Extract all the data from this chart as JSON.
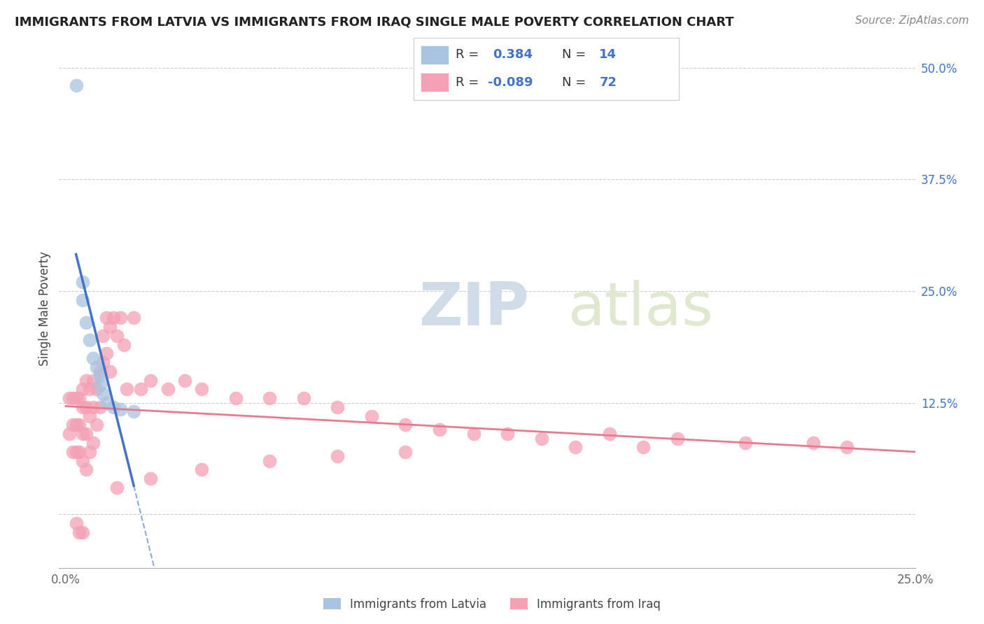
{
  "title": "IMMIGRANTS FROM LATVIA VS IMMIGRANTS FROM IRAQ SINGLE MALE POVERTY CORRELATION CHART",
  "source": "Source: ZipAtlas.com",
  "ylabel": "Single Male Poverty",
  "xlim": [
    -0.002,
    0.25
  ],
  "ylim": [
    -0.06,
    0.52
  ],
  "color_latvia": "#a8c4e0",
  "color_iraq": "#f4a0b5",
  "trendline_latvia_color": "#4472c4",
  "trendline_iraq_color": "#e87a90",
  "grid_color": "#cccccc",
  "background_color": "#ffffff",
  "watermark_zip": "ZIP",
  "watermark_atlas": "atlas",
  "right_tick_color": "#4472c4",
  "latvia_x": [
    0.003,
    0.005,
    0.005,
    0.006,
    0.007,
    0.008,
    0.009,
    0.01,
    0.01,
    0.011,
    0.012,
    0.014,
    0.016,
    0.02
  ],
  "latvia_y": [
    0.48,
    0.26,
    0.24,
    0.215,
    0.195,
    0.175,
    0.165,
    0.155,
    0.145,
    0.135,
    0.125,
    0.12,
    0.118,
    0.115
  ],
  "iraq_x": [
    0.001,
    0.001,
    0.002,
    0.002,
    0.002,
    0.003,
    0.003,
    0.003,
    0.003,
    0.004,
    0.004,
    0.004,
    0.004,
    0.005,
    0.005,
    0.005,
    0.005,
    0.005,
    0.006,
    0.006,
    0.006,
    0.006,
    0.007,
    0.007,
    0.007,
    0.008,
    0.008,
    0.008,
    0.009,
    0.009,
    0.01,
    0.01,
    0.011,
    0.011,
    0.012,
    0.012,
    0.013,
    0.013,
    0.014,
    0.015,
    0.016,
    0.017,
    0.018,
    0.02,
    0.022,
    0.025,
    0.03,
    0.035,
    0.04,
    0.05,
    0.06,
    0.07,
    0.08,
    0.09,
    0.1,
    0.11,
    0.12,
    0.13,
    0.14,
    0.16,
    0.18,
    0.2,
    0.22,
    0.23,
    0.15,
    0.17,
    0.1,
    0.08,
    0.06,
    0.04,
    0.025,
    0.015
  ],
  "iraq_y": [
    0.13,
    0.09,
    0.13,
    0.1,
    0.07,
    0.13,
    0.1,
    0.07,
    -0.01,
    0.13,
    0.1,
    0.07,
    -0.02,
    0.14,
    0.12,
    0.09,
    0.06,
    -0.02,
    0.15,
    0.12,
    0.09,
    0.05,
    0.14,
    0.11,
    0.07,
    0.15,
    0.12,
    0.08,
    0.14,
    0.1,
    0.16,
    0.12,
    0.2,
    0.17,
    0.22,
    0.18,
    0.21,
    0.16,
    0.22,
    0.2,
    0.22,
    0.19,
    0.14,
    0.22,
    0.14,
    0.15,
    0.14,
    0.15,
    0.14,
    0.13,
    0.13,
    0.13,
    0.12,
    0.11,
    0.1,
    0.095,
    0.09,
    0.09,
    0.085,
    0.09,
    0.085,
    0.08,
    0.08,
    0.075,
    0.075,
    0.075,
    0.07,
    0.065,
    0.06,
    0.05,
    0.04,
    0.03
  ]
}
